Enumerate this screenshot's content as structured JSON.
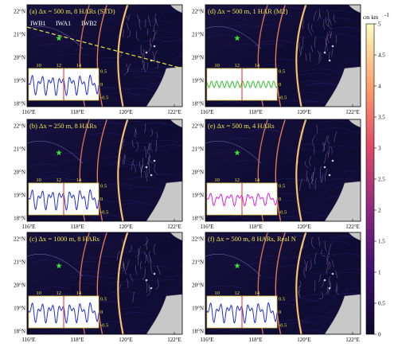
{
  "chart_data": [
    {
      "type": "heatmap",
      "panel": "a",
      "title": "(a) Δx = 500 m, 8 HARs (STD)",
      "wave_labels": [
        "IWB1",
        "IWA1",
        "IWB2"
      ],
      "has_transect": true,
      "inset": {
        "type": "line",
        "series_color": "#1f2fd6",
        "xticks": [
          10,
          12,
          14
        ],
        "yticks": [
          0.5,
          0,
          -0.5
        ],
        "ylim": [
          -0.6,
          0.6
        ],
        "amplitude": 0.4,
        "frequency": "multi",
        "red_line_x": 12.5
      }
    },
    {
      "type": "heatmap",
      "panel": "b",
      "title": "(b) Δx = 250 m, 8 HARs",
      "inset": {
        "type": "line",
        "series_color": "#1f2fd6",
        "xticks": [
          10,
          12,
          14
        ],
        "yticks": [
          0.5,
          0,
          -0.5
        ],
        "ylim": [
          -0.6,
          0.6
        ],
        "amplitude": 0.4,
        "frequency": "multi",
        "red_line_x": 12.5
      }
    },
    {
      "type": "heatmap",
      "panel": "c",
      "title": "(c) Δx = 1000 m, 8 HARs",
      "inset": {
        "type": "line",
        "series_color": "#1f2fd6",
        "xticks": [
          10,
          12,
          14
        ],
        "yticks": [
          0.5,
          0,
          -0.5
        ],
        "ylim": [
          -0.6,
          0.6
        ],
        "amplitude": 0.4,
        "frequency": "multi",
        "red_line_x": 12.5
      }
    },
    {
      "type": "heatmap",
      "panel": "d",
      "title": "(d) Δx = 500 m, 1 HAR (M2)",
      "inset": {
        "type": "line",
        "series_color": "#2fc22f",
        "xticks": [
          10,
          12,
          14
        ],
        "yticks": [
          0.5,
          0,
          -0.5
        ],
        "ylim": [
          -0.6,
          0.6
        ],
        "amplitude": 0.12,
        "frequency": "m2",
        "red_line_x": 12.5
      }
    },
    {
      "type": "heatmap",
      "panel": "e",
      "title": "(e) Δx = 500 m, 4 HARs",
      "inset": {
        "type": "line",
        "series_color": "#e020e0",
        "xticks": [
          10,
          12,
          14
        ],
        "yticks": [
          0.5,
          0,
          -0.5
        ],
        "ylim": [
          -0.6,
          0.6
        ],
        "amplitude": 0.25,
        "frequency": "multi",
        "red_line_x": 12.5
      }
    },
    {
      "type": "heatmap",
      "panel": "f",
      "title": "(f) Δx = 500 m, 8 HARs, Real N",
      "inset": {
        "type": "line",
        "series_color": "#1f2fd6",
        "xticks": [
          10,
          12,
          14
        ],
        "yticks": [
          0.5,
          0,
          -0.5
        ],
        "ylim": [
          -0.6,
          0.6
        ],
        "amplitude": 0.4,
        "frequency": "multi",
        "red_line_x": 12.5
      }
    }
  ],
  "axes": {
    "xticks": [
      "116°E",
      "118°E",
      "120°E",
      "122°E"
    ],
    "yticks": [
      "22°N",
      "21°N",
      "20°N",
      "19°N",
      "18°N"
    ]
  },
  "colorbar": {
    "unit": "cm km",
    "unit_exp": "-1",
    "ticks": [
      "5",
      "4.5",
      "4",
      "3.5",
      "3",
      "2.5",
      "2",
      "1.5",
      "1",
      "0.5",
      "0"
    ],
    "range": [
      0,
      5
    ],
    "colors": [
      "#0d0829",
      "#3b0f70",
      "#8c2981",
      "#de4968",
      "#fe9f6d",
      "#fcfdbf"
    ]
  },
  "colors": {
    "ocean_bg": "#0c0a2e",
    "land": "#c8c8c8",
    "star": "#3ddc3d",
    "transect": "#f2e24a",
    "inset_border": "#e8c23a",
    "red_line": "#e02020"
  }
}
